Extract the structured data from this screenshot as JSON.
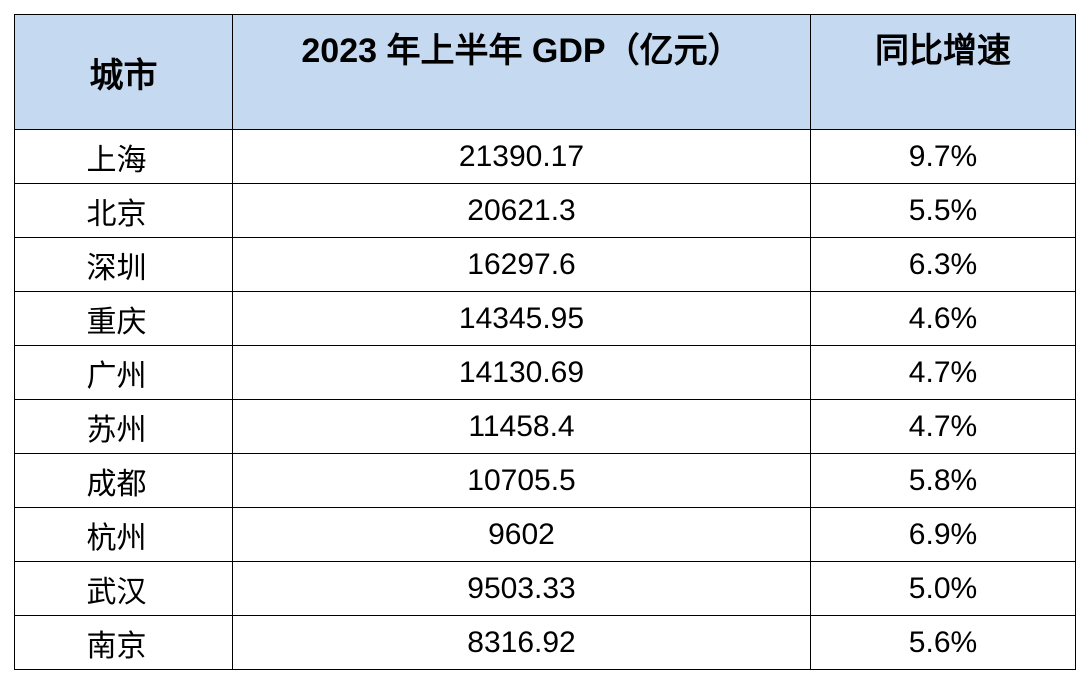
{
  "table": {
    "headers": [
      "城市",
      "2023 年上半年 GDP（亿元）",
      "同比增速"
    ],
    "rows": [
      [
        "上海",
        "21390.17",
        "9.7%"
      ],
      [
        "北京",
        "20621.3",
        "5.5%"
      ],
      [
        "深圳",
        "16297.6",
        "6.3%"
      ],
      [
        "重庆",
        "14345.95",
        "4.6%"
      ],
      [
        "广州",
        "14130.69",
        "4.7%"
      ],
      [
        "苏州",
        "11458.4",
        "4.7%"
      ],
      [
        "成都",
        "10705.5",
        "5.8%"
      ],
      [
        "杭州",
        "9602",
        "6.9%"
      ],
      [
        "武汉",
        "9503.33",
        "5.0%"
      ],
      [
        "南京",
        "8316.92",
        "5.6%"
      ]
    ]
  }
}
